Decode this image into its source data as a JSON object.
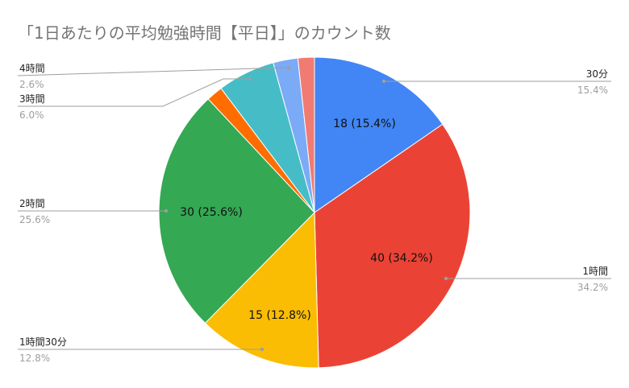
{
  "chart_data": {
    "type": "pie",
    "title": "「1日あたりの平均勉強時間【平日】」のカウント数",
    "slices": [
      {
        "name": "30分",
        "value": 18,
        "percent": "15.4%",
        "slice_label": "18 (15.4%)",
        "color": "#4285f4"
      },
      {
        "name": "1時間",
        "value": 40,
        "percent": "34.2%",
        "slice_label": "40 (34.2%)",
        "color": "#ea4335"
      },
      {
        "name": "1時間30分",
        "value": 15,
        "percent": "12.8%",
        "slice_label": "15 (12.8%)",
        "color": "#fbbc04"
      },
      {
        "name": "2時間",
        "value": 30,
        "percent": "25.6%",
        "slice_label": "30 (25.6%)",
        "color": "#34a853"
      },
      {
        "name": "",
        "value": 2,
        "percent": "",
        "slice_label": "",
        "color": "#ff6d01"
      },
      {
        "name": "3時間",
        "value": 7,
        "percent": "6.0%",
        "slice_label": "",
        "color": "#46bdc6"
      },
      {
        "name": "4時間",
        "value": 3,
        "percent": "2.6%",
        "slice_label": "",
        "color": "#7baaf7"
      },
      {
        "name": "",
        "value": 2,
        "percent": "",
        "slice_label": "",
        "color": "#f07b72"
      }
    ],
    "legend": "none"
  }
}
